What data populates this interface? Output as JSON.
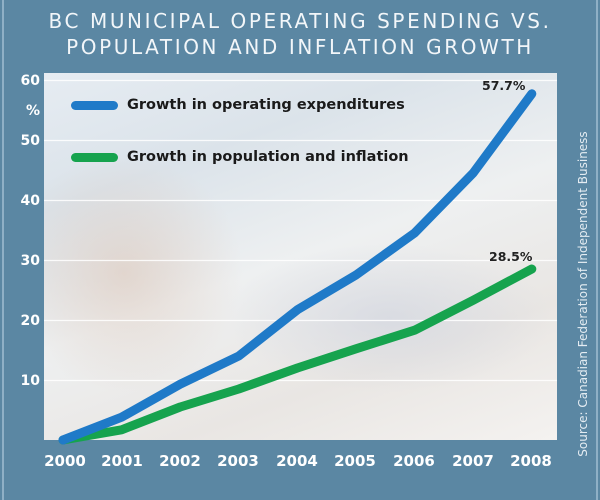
{
  "title": {
    "line1": "BC MUNICIPAL OPERATING SPENDING VS.",
    "line2": "POPULATION AND INFLATION GROWTH"
  },
  "y_axis": {
    "unit": "%",
    "ticks": [
      "60",
      "50",
      "40",
      "30",
      "20",
      "10"
    ]
  },
  "x_axis": {
    "ticks": [
      "2000",
      "2001",
      "2002",
      "2003",
      "2004",
      "2005",
      "2006",
      "2007",
      "2008"
    ]
  },
  "legend": [
    {
      "label": "Growth in operating expenditures",
      "color": "#1f7ac8"
    },
    {
      "label": "Growth in population and inflation",
      "color": "#16a34e"
    }
  ],
  "annotations": {
    "expenditures_end": "57.7%",
    "population_end": "28.5%"
  },
  "source": "Source: Canadian Federation of Independent Business",
  "colors": {
    "background": "#5b87a3",
    "expenditures": "#1f7ac8",
    "population": "#16a34e"
  },
  "chart_data": {
    "type": "line",
    "title": "BC Municipal Operating Spending vs. Population and Inflation Growth",
    "xlabel": "",
    "ylabel": "%",
    "x": [
      2000,
      2001,
      2002,
      2003,
      2004,
      2005,
      2006,
      2007,
      2008
    ],
    "series": [
      {
        "name": "Growth in operating expenditures",
        "color": "#1f7ac8",
        "values": [
          0,
          3.8,
          9.3,
          14.0,
          21.7,
          27.5,
          34.5,
          44.5,
          57.7
        ]
      },
      {
        "name": "Growth in population and inflation",
        "color": "#16a34e",
        "values": [
          0,
          1.7,
          5.5,
          8.5,
          12.0,
          15.2,
          18.3,
          23.3,
          28.5
        ]
      }
    ],
    "ylim": [
      0,
      60
    ],
    "yticks": [
      10,
      20,
      30,
      40,
      50,
      60
    ],
    "grid": true,
    "legend_position": "top-left inside",
    "annotations": [
      {
        "text": "57.7%",
        "x": 2008,
        "series": "Growth in operating expenditures"
      },
      {
        "text": "28.5%",
        "x": 2008,
        "series": "Growth in population and inflation"
      }
    ],
    "source": "Canadian Federation of Independent Business"
  }
}
